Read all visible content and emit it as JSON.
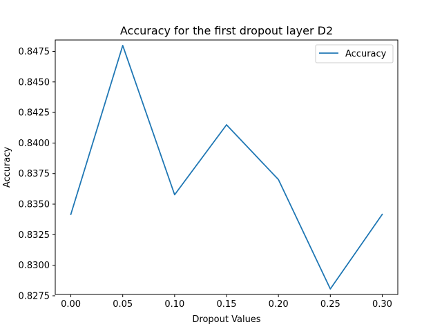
{
  "chart_data": {
    "type": "line",
    "title": "Accuracy for the first dropout layer D2",
    "xlabel": "Dropout Values",
    "ylabel": "Accuracy",
    "x": [
      0.0,
      0.05,
      0.1,
      0.15,
      0.2,
      0.25,
      0.3
    ],
    "series": [
      {
        "name": "Accuracy",
        "color": "#1f77b4",
        "values": [
          0.83416,
          0.84798,
          0.83577,
          0.84149,
          0.83701,
          0.82806,
          0.83416
        ]
      }
    ],
    "xlim": [
      -0.015,
      0.315
    ],
    "ylim": [
      0.82761,
      0.84843
    ],
    "xticks": [
      0.0,
      0.05,
      0.1,
      0.15,
      0.2,
      0.25,
      0.3
    ],
    "xtick_labels": [
      "0.00",
      "0.05",
      "0.10",
      "0.15",
      "0.20",
      "0.25",
      "0.30"
    ],
    "yticks": [
      0.8275,
      0.83,
      0.8325,
      0.835,
      0.8375,
      0.84,
      0.8425,
      0.845,
      0.8475
    ],
    "ytick_labels": [
      "0.8275",
      "0.8300",
      "0.8325",
      "0.8350",
      "0.8375",
      "0.8400",
      "0.8425",
      "0.8450",
      "0.8475"
    ],
    "grid": false,
    "legend_position": "top-right"
  }
}
